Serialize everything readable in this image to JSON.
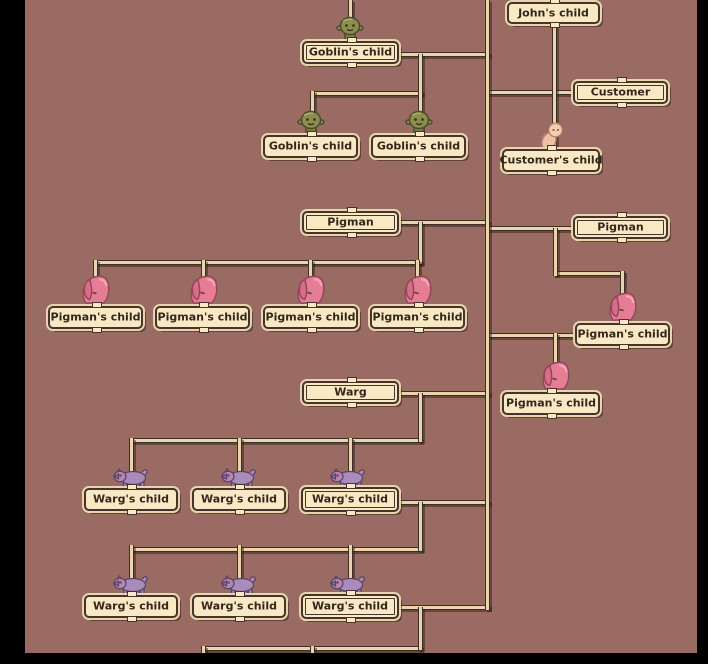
{
  "screen": "family-tree",
  "palette": {
    "wall": "#9a6b63",
    "frame": "#000000",
    "box_fill": "#f9e8c4",
    "box_border": "#46342a",
    "box_halo": "#e8d5ae",
    "line_core": "#e8d5ad",
    "line_edge": "#3e2e24",
    "label_text": "#33261b",
    "goblin": "#8d8d50",
    "pigman": "#e57e94",
    "warg": "#a98cbb",
    "baby": "#f4cdb2"
  },
  "tree": {
    "nodes": [
      {
        "id": "john-child",
        "label": "John's child",
        "sprite": null,
        "emphasis": false
      },
      {
        "id": "goblin-child-top",
        "label": "Goblin's child",
        "sprite": "goblin-sprite",
        "emphasis": true
      },
      {
        "id": "goblin-child-1",
        "label": "Goblin's child",
        "sprite": "goblin-sprite",
        "emphasis": false
      },
      {
        "id": "goblin-child-2",
        "label": "Goblin's child",
        "sprite": "goblin-sprite",
        "emphasis": false
      },
      {
        "id": "customer",
        "label": "Customer",
        "sprite": null,
        "emphasis": true
      },
      {
        "id": "customer-child",
        "label": "Customer's child",
        "sprite": "baby-sprite",
        "emphasis": false
      },
      {
        "id": "pigman-left",
        "label": "Pigman",
        "sprite": null,
        "emphasis": true
      },
      {
        "id": "pigman-right",
        "label": "Pigman",
        "sprite": null,
        "emphasis": true
      },
      {
        "id": "pigman-child-1",
        "label": "Pigman's child",
        "sprite": "pigman-sprite",
        "emphasis": false
      },
      {
        "id": "pigman-child-2",
        "label": "Pigman's child",
        "sprite": "pigman-sprite",
        "emphasis": false
      },
      {
        "id": "pigman-child-3",
        "label": "Pigman's child",
        "sprite": "pigman-sprite",
        "emphasis": false
      },
      {
        "id": "pigman-child-4",
        "label": "Pigman's child",
        "sprite": "pigman-sprite",
        "emphasis": false
      },
      {
        "id": "pigman-child-r1",
        "label": "Pigman's child",
        "sprite": "pigman-sprite",
        "emphasis": false
      },
      {
        "id": "pigman-child-r2",
        "label": "Pigman's child",
        "sprite": "pigman-sprite",
        "emphasis": false
      },
      {
        "id": "warg",
        "label": "Warg",
        "sprite": null,
        "emphasis": true
      },
      {
        "id": "warg-child-1",
        "label": "Warg's child",
        "sprite": "warg-sprite",
        "emphasis": false
      },
      {
        "id": "warg-child-2",
        "label": "Warg's child",
        "sprite": "warg-sprite",
        "emphasis": false
      },
      {
        "id": "warg-child-3",
        "label": "Warg's child",
        "sprite": "warg-sprite",
        "emphasis": true
      },
      {
        "id": "warg-child-4",
        "label": "Warg's child",
        "sprite": "warg-sprite",
        "emphasis": false
      },
      {
        "id": "warg-child-5",
        "label": "Warg's child",
        "sprite": "warg-sprite",
        "emphasis": false
      },
      {
        "id": "warg-child-6",
        "label": "Warg's child",
        "sprite": "warg-sprite",
        "emphasis": true
      }
    ]
  }
}
